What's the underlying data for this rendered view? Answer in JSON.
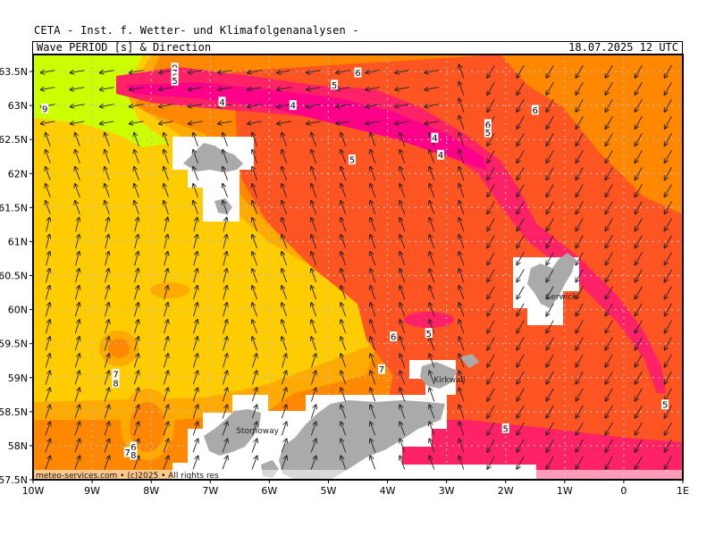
{
  "header": {
    "institute": "CETA - Inst. f. Wetter- und Klimafolgenanalysen -",
    "product": "Wave PERIOD [s] & Direction",
    "valid_time": "18.07.2025 12 UTC"
  },
  "credit": "meteo-services.com • (c)2025 • All rights res",
  "map": {
    "lon_range": [
      -10,
      1
    ],
    "lat_range": [
      57.5,
      63.75
    ],
    "lon_ticks": [
      {
        "value": -10,
        "label": "10W"
      },
      {
        "value": -9,
        "label": "9W"
      },
      {
        "value": -8,
        "label": "8W"
      },
      {
        "value": -7,
        "label": "7W"
      },
      {
        "value": -6,
        "label": "6W"
      },
      {
        "value": -5,
        "label": "5W"
      },
      {
        "value": -4,
        "label": "4W"
      },
      {
        "value": -3,
        "label": "3W"
      },
      {
        "value": -2,
        "label": "2W"
      },
      {
        "value": -1,
        "label": "1W"
      },
      {
        "value": 0,
        "label": "0"
      },
      {
        "value": 1,
        "label": "1E"
      }
    ],
    "lat_ticks": [
      {
        "value": 63.5,
        "label": "63.5N"
      },
      {
        "value": 63,
        "label": "63N"
      },
      {
        "value": 62.5,
        "label": "62.5N"
      },
      {
        "value": 62,
        "label": "62N"
      },
      {
        "value": 61.5,
        "label": "61.5N"
      },
      {
        "value": 61,
        "label": "61N"
      },
      {
        "value": 60.5,
        "label": "60.5N"
      },
      {
        "value": 60,
        "label": "60N"
      },
      {
        "value": 59.5,
        "label": "59.5N"
      },
      {
        "value": 59,
        "label": "59N"
      },
      {
        "value": 58.5,
        "label": "58.5N"
      },
      {
        "value": 58,
        "label": "58N"
      },
      {
        "value": 57.5,
        "label": "57.5N"
      }
    ],
    "colors": {
      "period_9": "#ccff00",
      "period_8": "#ffcc00",
      "period_7": "#ffaa00",
      "period_6": "#ff8800",
      "period_5": "#ff5522",
      "period_4": "#ff2266",
      "period_3": "#ff0088",
      "land": "#aaaaaa",
      "no_data": "#ffffff",
      "grid": "#bbbbbb"
    },
    "contour_labels": [
      {
        "text": "9",
        "lon": -9.8,
        "lat": 62.95
      },
      {
        "text": "9",
        "lon": -7.6,
        "lat": 63.55
      },
      {
        "text": "7",
        "lon": -7.6,
        "lat": 63.48
      },
      {
        "text": "6",
        "lon": -7.6,
        "lat": 63.42
      },
      {
        "text": "5",
        "lon": -7.6,
        "lat": 63.36
      },
      {
        "text": "4",
        "lon": -6.8,
        "lat": 63.05
      },
      {
        "text": "4",
        "lon": -5.6,
        "lat": 63.0
      },
      {
        "text": "6",
        "lon": -4.5,
        "lat": 63.48
      },
      {
        "text": "5",
        "lon": -4.9,
        "lat": 63.3
      },
      {
        "text": "5",
        "lon": -4.6,
        "lat": 62.2
      },
      {
        "text": "4",
        "lon": -3.2,
        "lat": 62.52
      },
      {
        "text": "4",
        "lon": -3.1,
        "lat": 62.27
      },
      {
        "text": "6",
        "lon": -2.3,
        "lat": 62.72
      },
      {
        "text": "5",
        "lon": -2.3,
        "lat": 62.6
      },
      {
        "text": "6",
        "lon": -1.5,
        "lat": 62.93
      },
      {
        "text": "6",
        "lon": -3.9,
        "lat": 59.6
      },
      {
        "text": "5",
        "lon": -3.3,
        "lat": 59.65
      },
      {
        "text": "7",
        "lon": -4.1,
        "lat": 59.12
      },
      {
        "text": "7",
        "lon": -8.6,
        "lat": 59.05
      },
      {
        "text": "8",
        "lon": -8.6,
        "lat": 58.92
      },
      {
        "text": "6",
        "lon": -8.3,
        "lat": 57.98
      },
      {
        "text": "7",
        "lon": -8.4,
        "lat": 57.9
      },
      {
        "text": "8",
        "lon": -8.3,
        "lat": 57.86
      },
      {
        "text": "5",
        "lon": -2.0,
        "lat": 58.25
      },
      {
        "text": "5",
        "lon": 0.7,
        "lat": 58.6
      }
    ],
    "places": [
      {
        "text": "Lerwick",
        "lon": -1.05,
        "lat": 60.15
      },
      {
        "text": "Kirkwall",
        "lon": -2.95,
        "lat": 58.93
      },
      {
        "text": "Stornoway",
        "lon": -6.2,
        "lat": 58.18
      }
    ]
  }
}
